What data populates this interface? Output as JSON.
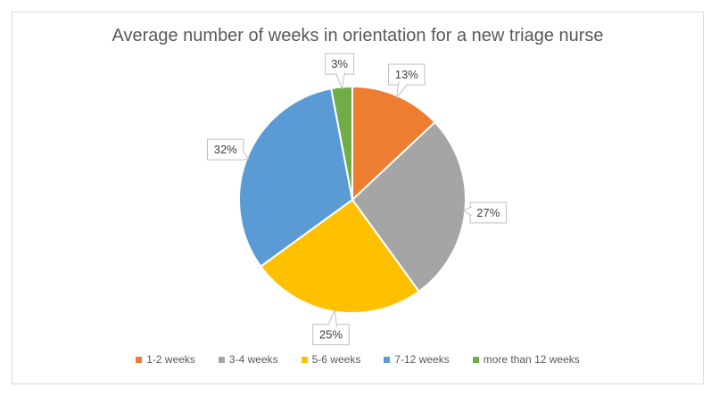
{
  "window": {
    "background_color": "#FFFFFF",
    "frame_border_color": "#D9D9D9"
  },
  "chart_data": {
    "type": "pie",
    "title": "Average number of weeks in orientation for a new triage nurse",
    "categories": [
      "1-2 weeks",
      "3-4 weeks",
      "5-6 weeks",
      "7-12 weeks",
      "more than 12 weeks"
    ],
    "values": [
      13,
      27,
      25,
      32,
      3
    ],
    "data_labels": [
      "13%",
      "27%",
      "25%",
      "32%",
      "3%"
    ],
    "colors": [
      "#ED7D31",
      "#A5A5A5",
      "#FFC000",
      "#5B9BD5",
      "#70AD47"
    ],
    "unit": "percent",
    "start_angle_deg": 0,
    "direction": "clockwise",
    "legend_position": "bottom",
    "label_style": "callout",
    "title_color": "#595959",
    "legend_text_color": "#595959",
    "label_text_color": "#404040",
    "callout_fill_color": "#FFFFFF",
    "callout_border_color": "#BFBFBF",
    "slice_separator_color": "#FFFFFF"
  }
}
